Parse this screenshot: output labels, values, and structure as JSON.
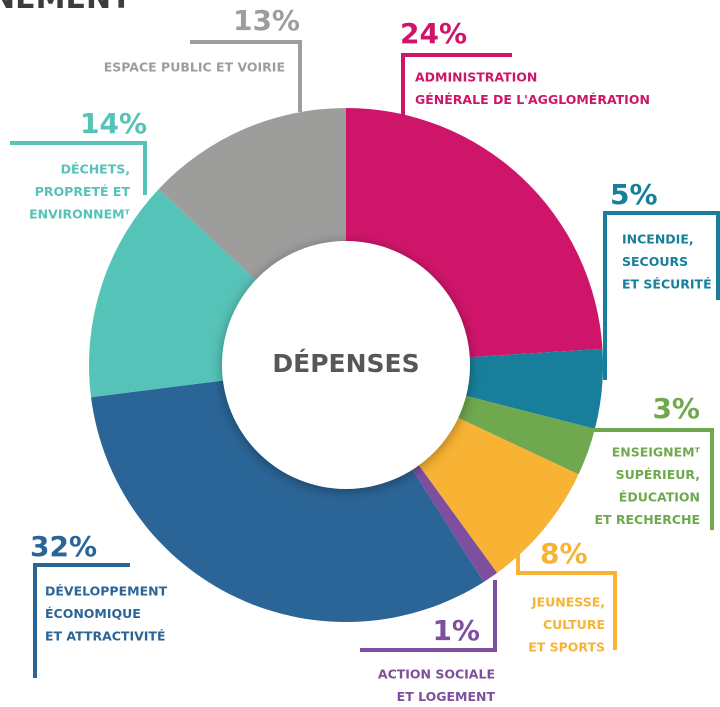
{
  "chart_data": {
    "type": "donut",
    "title": "NEMENT",
    "center_label": "DÉPENSES",
    "categories": [
      [
        "ADMINISTRATION",
        "GÉNÉRALE DE L'AGGLOMÉRATION"
      ],
      [
        "INCENDIE,",
        "SECOURS",
        "ET SÉCURITÉ"
      ],
      [
        "ENSEIGNEMᵀ",
        "SUPÉRIEUR,",
        "ÉDUCATION",
        "ET RECHERCHE"
      ],
      [
        "JEUNESSE,",
        "CULTURE",
        "ET SPORTS"
      ],
      [
        "ACTION SOCIALE",
        "ET LOGEMENT"
      ],
      [
        "DÉVELOPPEMENT",
        "ÉCONOMIQUE",
        "ET ATTRACTIVITÉ"
      ],
      [
        "DÉCHETS,",
        "PROPRETÉ ET",
        "ENVIRONNEMᵀ"
      ],
      [
        "ESPACE PUBLIC ET VOIRIE"
      ]
    ],
    "values": [
      24,
      5,
      3,
      8,
      1,
      32,
      14,
      13
    ],
    "value_labels": [
      "24%",
      "5%",
      "3%",
      "8%",
      "1%",
      "32%",
      "14%",
      "13%"
    ],
    "colors": [
      "#cf156a",
      "#177f9b",
      "#6fa84e",
      "#f8b334",
      "#7d4f9e",
      "#2b6597",
      "#56c3b8",
      "#9d9d9c"
    ]
  }
}
